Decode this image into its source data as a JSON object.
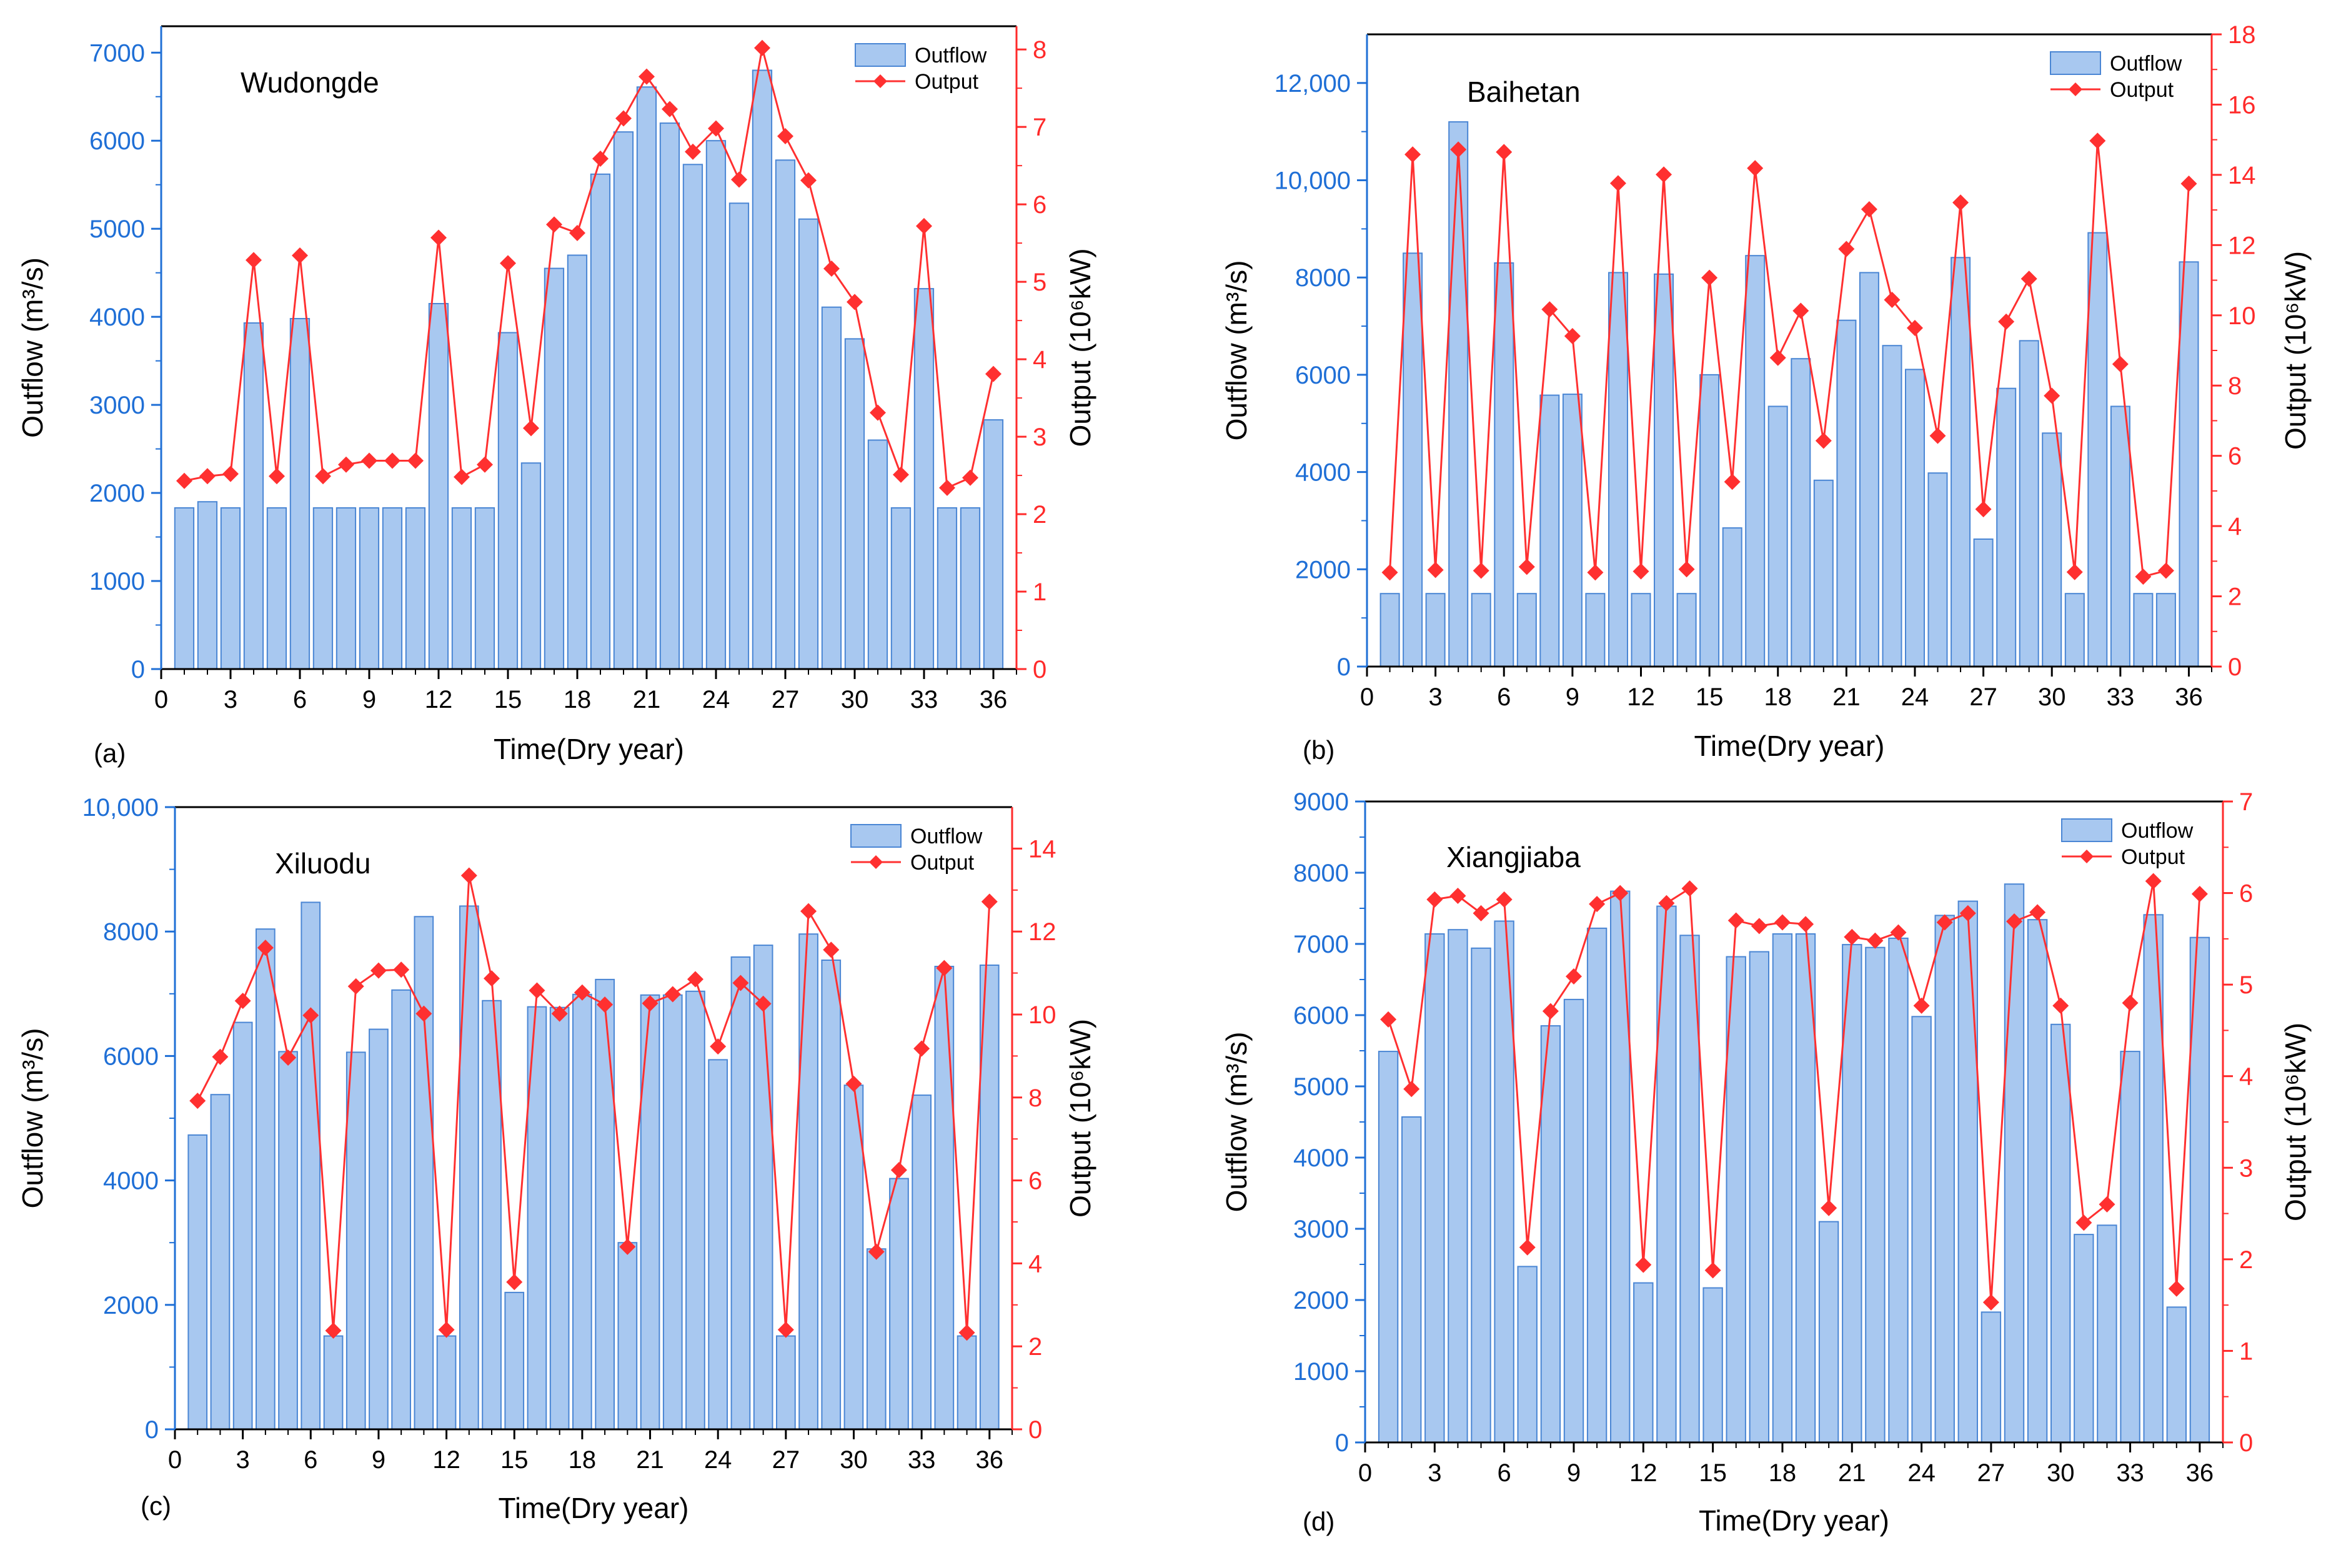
{
  "colors": {
    "bar_fill": "#a8c8f0",
    "bar_stroke": "#4a86d4",
    "left_axis": "#1f6fd6",
    "right_axis": "#ff2a2a",
    "line": "#ff3030",
    "marker": "#ff3030",
    "axis_black": "#000000"
  },
  "chart_data": [
    {
      "type": "bar",
      "panel": "(a)",
      "title": "Wudongde",
      "xlabel": "Time(Dry year)",
      "ylabel": "Outflow (m³/s)",
      "y2label": "Output (10⁶kW)",
      "xlim": [
        0,
        37
      ],
      "x_ticks": [
        "0",
        "3",
        "6",
        "9",
        "12",
        "15",
        "18",
        "21",
        "24",
        "27",
        "30",
        "33",
        "36"
      ],
      "ylim": [
        0,
        7300
      ],
      "y_ticks": [
        "0",
        "1000",
        "2000",
        "3000",
        "4000",
        "5000",
        "6000",
        "7000"
      ],
      "y2lim": [
        0,
        8.3
      ],
      "y2_ticks": [
        "0",
        "1",
        "2",
        "3",
        "4",
        "5",
        "6",
        "7",
        "8"
      ],
      "x": [
        1,
        2,
        3,
        4,
        5,
        6,
        7,
        8,
        9,
        10,
        11,
        12,
        13,
        14,
        15,
        16,
        17,
        18,
        19,
        20,
        21,
        22,
        23,
        24,
        25,
        26,
        27,
        28,
        29,
        30,
        31,
        32,
        33,
        34,
        35,
        36
      ],
      "series": [
        {
          "name": "Outflow",
          "kind": "bar",
          "values": [
            1830,
            1900,
            1830,
            3930,
            1830,
            3980,
            1830,
            1830,
            1830,
            1830,
            1830,
            4150,
            1830,
            1830,
            3820,
            2340,
            4550,
            4700,
            5620,
            6100,
            6610,
            6200,
            5730,
            6000,
            5290,
            6800,
            5780,
            5110,
            4110,
            3750,
            2600,
            1830,
            4320,
            1830,
            1830,
            2830
          ]
        },
        {
          "name": "Output",
          "kind": "line",
          "values": [
            2.43,
            2.49,
            2.52,
            5.28,
            2.49,
            5.34,
            2.49,
            2.64,
            2.69,
            2.69,
            2.69,
            5.57,
            2.48,
            2.64,
            5.24,
            3.11,
            5.74,
            5.63,
            6.59,
            7.11,
            7.65,
            7.23,
            6.68,
            6.98,
            6.32,
            8.02,
            6.88,
            6.31,
            5.17,
            4.74,
            3.31,
            2.51,
            5.72,
            2.34,
            2.47,
            3.81
          ]
        }
      ],
      "legend": {
        "position": "top-right",
        "items": [
          "Outflow",
          "Output"
        ]
      },
      "grid": false
    },
    {
      "type": "bar",
      "panel": "(b)",
      "title": "Baihetan",
      "xlabel": "Time(Dry year)",
      "ylabel": "Outflow (m³/s)",
      "y2label": "Output (10⁶kW)",
      "xlim": [
        0,
        37
      ],
      "x_ticks": [
        "0",
        "3",
        "6",
        "9",
        "12",
        "15",
        "18",
        "21",
        "24",
        "27",
        "30",
        "33",
        "36"
      ],
      "ylim": [
        0,
        13000
      ],
      "y_ticks": [
        "0",
        "2000",
        "4000",
        "6000",
        "8000",
        "10,000",
        "12,000"
      ],
      "y2lim": [
        0,
        18
      ],
      "y2_ticks": [
        "0",
        "2",
        "4",
        "6",
        "8",
        "10",
        "12",
        "14",
        "16",
        "18"
      ],
      "x": [
        1,
        2,
        3,
        4,
        5,
        6,
        7,
        8,
        9,
        10,
        11,
        12,
        13,
        14,
        15,
        16,
        17,
        18,
        19,
        20,
        21,
        22,
        23,
        24,
        25,
        26,
        27,
        28,
        29,
        30,
        31,
        32,
        33,
        34,
        35,
        36
      ],
      "series": [
        {
          "name": "Outflow",
          "kind": "bar",
          "values": [
            1500,
            8500,
            1500,
            11200,
            1500,
            8300,
            1500,
            5580,
            5600,
            1500,
            8100,
            1500,
            8070,
            1500,
            6000,
            2850,
            8450,
            5350,
            6330,
            3830,
            7120,
            8100,
            6600,
            6110,
            3980,
            8410,
            2620,
            5720,
            6700,
            4800,
            1500,
            8920,
            5350,
            1500,
            1500,
            8320
          ]
        },
        {
          "name": "Output",
          "kind": "line",
          "values": [
            2.68,
            14.58,
            2.75,
            14.72,
            2.73,
            14.65,
            2.84,
            10.17,
            9.41,
            2.68,
            13.76,
            2.71,
            14.01,
            2.77,
            11.07,
            5.26,
            14.19,
            8.79,
            10.13,
            6.43,
            11.89,
            13.02,
            10.44,
            9.64,
            6.57,
            13.21,
            4.48,
            9.82,
            11.04,
            7.71,
            2.69,
            14.97,
            8.61,
            2.56,
            2.73,
            13.75
          ]
        }
      ],
      "legend": {
        "position": "top-right",
        "items": [
          "Outflow",
          "Output"
        ]
      },
      "grid": false
    },
    {
      "type": "bar",
      "panel": "(c)",
      "title": "Xiluodu",
      "xlabel": "Time(Dry year)",
      "ylabel": "Outflow (m³/s)",
      "y2label": "Output (10⁶kW)",
      "xlim": [
        0,
        37
      ],
      "x_ticks": [
        "0",
        "3",
        "6",
        "9",
        "12",
        "15",
        "18",
        "21",
        "24",
        "27",
        "30",
        "33",
        "36"
      ],
      "ylim": [
        0,
        10000
      ],
      "y_ticks": [
        "0",
        "2000",
        "4000",
        "6000",
        "8000",
        "10,000"
      ],
      "y2lim": [
        0,
        15
      ],
      "y2_ticks": [
        "0",
        "2",
        "4",
        "6",
        "8",
        "10",
        "12",
        "14"
      ],
      "x": [
        1,
        2,
        3,
        4,
        5,
        6,
        7,
        8,
        9,
        10,
        11,
        12,
        13,
        14,
        15,
        16,
        17,
        18,
        19,
        20,
        21,
        22,
        23,
        24,
        25,
        26,
        27,
        28,
        29,
        30,
        31,
        32,
        33,
        34,
        35,
        36
      ],
      "series": [
        {
          "name": "Outflow",
          "kind": "bar",
          "values": [
            4730,
            5380,
            6540,
            8040,
            6070,
            8470,
            1500,
            6060,
            6430,
            7060,
            8240,
            1500,
            8410,
            6890,
            2200,
            6790,
            6780,
            6990,
            7230,
            3000,
            6980,
            6980,
            7040,
            5940,
            7590,
            7780,
            1500,
            7960,
            7540,
            5530,
            2900,
            4030,
            5370,
            7440,
            1500,
            7460
          ]
        },
        {
          "name": "Output",
          "kind": "line",
          "values": [
            7.92,
            8.98,
            10.33,
            11.61,
            8.96,
            9.98,
            2.38,
            10.68,
            11.06,
            11.08,
            10.02,
            2.4,
            13.35,
            10.87,
            3.55,
            10.58,
            10.02,
            10.53,
            10.24,
            4.4,
            10.27,
            10.49,
            10.85,
            9.23,
            10.76,
            10.26,
            2.4,
            12.49,
            11.56,
            8.33,
            4.28,
            6.25,
            9.18,
            11.12,
            2.33,
            12.72
          ]
        }
      ],
      "legend": {
        "position": "top-right",
        "items": [
          "Outflow",
          "Output"
        ]
      },
      "grid": false
    },
    {
      "type": "bar",
      "panel": "(d)",
      "title": "Xiangjiaba",
      "xlabel": "Time(Dry year)",
      "ylabel": "Outflow (m³/s)",
      "y2label": "Output (10⁶kW)",
      "xlim": [
        0,
        37
      ],
      "x_ticks": [
        "0",
        "3",
        "6",
        "9",
        "12",
        "15",
        "18",
        "21",
        "24",
        "27",
        "30",
        "33",
        "36"
      ],
      "ylim": [
        0,
        9000
      ],
      "y_ticks": [
        "0",
        "1000",
        "2000",
        "3000",
        "4000",
        "5000",
        "6000",
        "7000",
        "8000",
        "9000"
      ],
      "y2lim": [
        0,
        7
      ],
      "y2_ticks": [
        "0",
        "1",
        "2",
        "3",
        "4",
        "5",
        "6",
        "7"
      ],
      "x": [
        1,
        2,
        3,
        4,
        5,
        6,
        7,
        8,
        9,
        10,
        11,
        12,
        13,
        14,
        15,
        16,
        17,
        18,
        19,
        20,
        21,
        22,
        23,
        24,
        25,
        26,
        27,
        28,
        29,
        30,
        31,
        32,
        33,
        34,
        35,
        36
      ],
      "series": [
        {
          "name": "Outflow",
          "kind": "bar",
          "values": [
            5490,
            4570,
            7140,
            7200,
            6940,
            7320,
            2470,
            5850,
            6220,
            7220,
            7740,
            2240,
            7530,
            7120,
            2170,
            6820,
            6890,
            7140,
            7140,
            3100,
            6990,
            6950,
            7080,
            5980,
            7400,
            7600,
            1830,
            7840,
            7340,
            5870,
            2920,
            3050,
            5490,
            7410,
            1900,
            7090
          ]
        },
        {
          "name": "Output",
          "kind": "line",
          "values": [
            4.62,
            3.86,
            5.93,
            5.97,
            5.78,
            5.93,
            2.13,
            4.71,
            5.09,
            5.88,
            6.0,
            1.94,
            5.89,
            6.05,
            1.88,
            5.7,
            5.64,
            5.68,
            5.66,
            2.56,
            5.52,
            5.48,
            5.57,
            4.77,
            5.68,
            5.78,
            1.53,
            5.69,
            5.79,
            4.77,
            2.4,
            2.6,
            4.8,
            6.13,
            1.68,
            5.99
          ]
        }
      ],
      "legend": {
        "position": "top-right",
        "items": [
          "Outflow",
          "Output"
        ]
      },
      "grid": false
    }
  ]
}
